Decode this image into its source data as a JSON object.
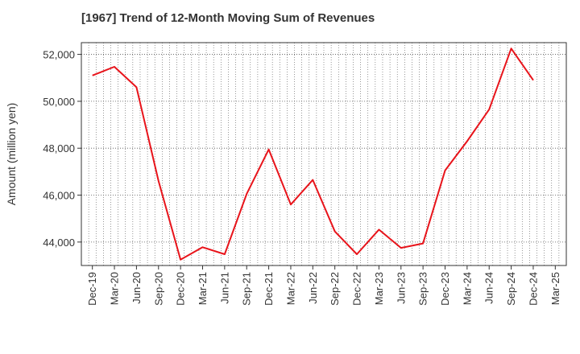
{
  "chart_data": {
    "type": "line",
    "title": "[1967]  Trend of 12-Month Moving Sum of Revenues",
    "xlabel": "",
    "ylabel": "Amount (million yen)",
    "x_tick_labels": [
      "Dec-19",
      "Mar-20",
      "Jun-20",
      "Sep-20",
      "Dec-20",
      "Mar-21",
      "Jun-21",
      "Sep-21",
      "Dec-21",
      "Mar-22",
      "Jun-22",
      "Sep-22",
      "Dec-22",
      "Mar-23",
      "Jun-23",
      "Sep-23",
      "Dec-23",
      "Mar-24",
      "Jun-24",
      "Sep-24",
      "Dec-24",
      "Mar-25"
    ],
    "y_ticks": [
      44000,
      46000,
      48000,
      50000,
      52000
    ],
    "y_tick_labels": [
      "44,000",
      "46,000",
      "48,000",
      "50,000",
      "52,000"
    ],
    "ylim": [
      43000,
      52500
    ],
    "grid": true,
    "series": [
      {
        "color": "#e8141b",
        "x": [
          "Dec-19",
          "Mar-20",
          "Jun-20",
          "Sep-20",
          "Dec-20",
          "Mar-21",
          "Jun-21",
          "Sep-21",
          "Dec-21",
          "Mar-22",
          "Jun-22",
          "Sep-22",
          "Dec-22",
          "Mar-23",
          "Jun-23",
          "Sep-23",
          "Dec-23",
          "Mar-24",
          "Jun-24",
          "Sep-24",
          "Dec-24"
        ],
        "values": [
          51100,
          51470,
          50600,
          46600,
          43250,
          43780,
          43480,
          46050,
          47950,
          45600,
          46650,
          44450,
          43480,
          44530,
          43750,
          43940,
          47050,
          48300,
          49650,
          52250,
          50900
        ]
      }
    ]
  }
}
